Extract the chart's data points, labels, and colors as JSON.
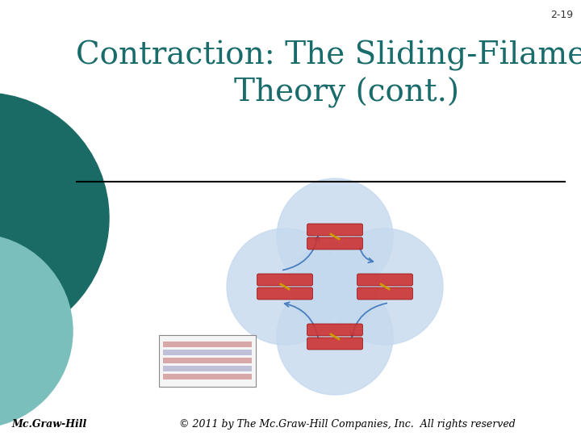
{
  "slide_number": "2-19",
  "title_line1": "Contraction: The Sliding-Filament",
  "title_line2": "Theory (cont.)",
  "title_color": "#1a6b6b",
  "title_fontsize": 28,
  "slide_number_fontsize": 9,
  "slide_number_color": "#333333",
  "background_color": "#ffffff",
  "footer_left": "Mc.Graw-Hill",
  "footer_right": "© 2011 by The Mc.Graw-Hill Companies, Inc.  All rights reserved",
  "footer_color": "#000000",
  "footer_fontsize": 9,
  "separator_color": "#000000",
  "separator_linewidth": 1.5,
  "teal_dark": "#1a6b65",
  "teal_light": "#7abfbc",
  "blob_color": "#c5d9ee",
  "blob_alpha": 0.8
}
